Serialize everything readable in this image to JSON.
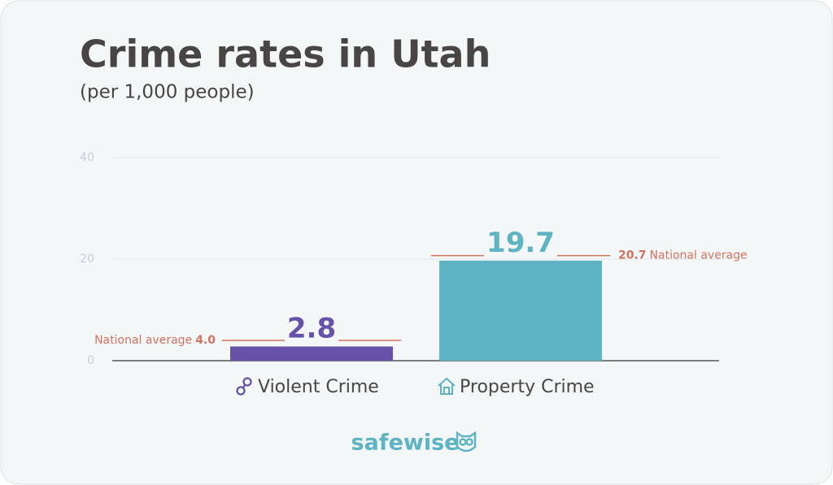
{
  "chart_data": {
    "type": "bar",
    "title": "Crime rates in Utah",
    "subtitle": "(per 1,000 people)",
    "categories": [
      "Violent Crime",
      "Property Crime"
    ],
    "values": [
      2.8,
      19.7
    ],
    "colors": [
      "#6652a9",
      "#5fb4c4"
    ],
    "national_average": {
      "label": "National average",
      "values": [
        4,
        20.7
      ],
      "value_labels": [
        "4.0",
        "20.7"
      ],
      "color": "#d2735f"
    },
    "ylim": [
      0,
      40
    ],
    "yticks": [
      0,
      20,
      40
    ],
    "grid": true,
    "logo": "safewise"
  }
}
